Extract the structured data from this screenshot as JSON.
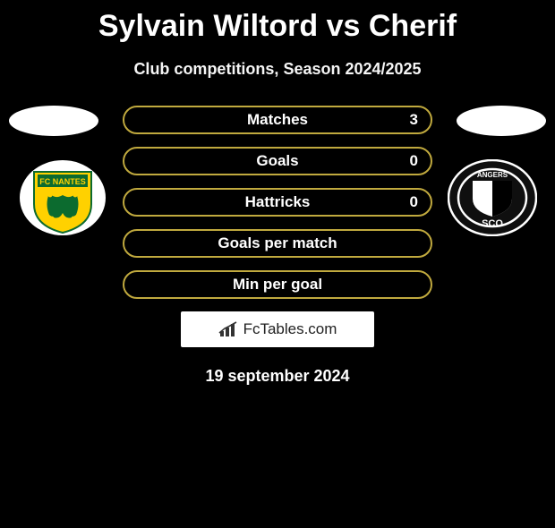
{
  "title": "Sylvain Wiltord vs Cherif",
  "subtitle": "Club competitions, Season 2024/2025",
  "stats": {
    "rows": [
      {
        "label": "Matches",
        "left_value": null,
        "right_value": "3"
      },
      {
        "label": "Goals",
        "left_value": null,
        "right_value": "0"
      },
      {
        "label": "Hattricks",
        "left_value": null,
        "right_value": "0"
      },
      {
        "label": "Goals per match",
        "left_value": null,
        "right_value": null
      },
      {
        "label": "Min per goal",
        "left_value": null,
        "right_value": null
      }
    ],
    "border_color": "#c0a93e",
    "row_bg": "rgba(0,0,0,0)",
    "label_color": "#ffffff"
  },
  "left_player": {
    "head_ellipse_color": "#ffffff",
    "club": {
      "name": "FC Nantes",
      "badge_bg": "#ffd100",
      "badge_accent": "#0c6b2f"
    }
  },
  "right_player": {
    "head_ellipse_color": "#ffffff",
    "club": {
      "name": "Angers SCO",
      "badge_bg": "#000000",
      "badge_ring": "#ffffff"
    }
  },
  "branding": {
    "text": "FcTables.com",
    "icon": "bar-chart"
  },
  "date": "19 september 2024",
  "background_color": "#000000"
}
